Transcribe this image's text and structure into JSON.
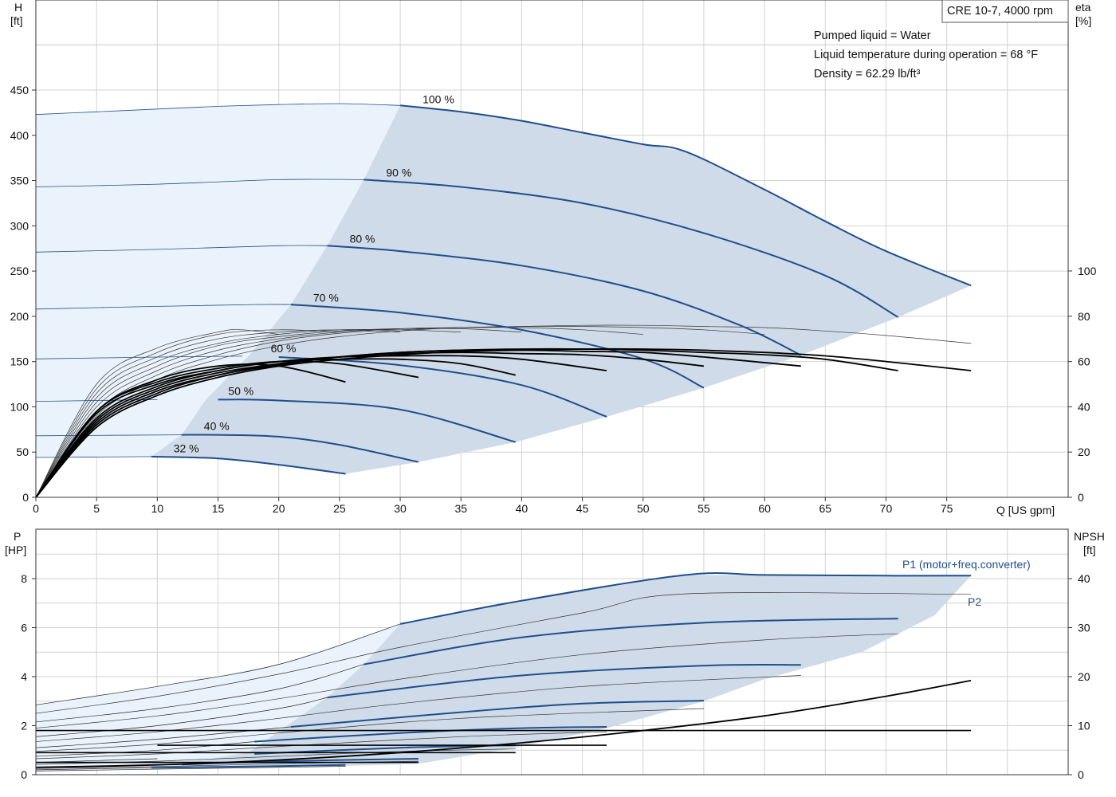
{
  "chart_data": [
    {
      "type": "line",
      "title": "CRE 10-7, 4000 rpm",
      "info_lines": [
        "Pumped liquid = Water",
        "Liquid temperature during operation = 68 °F",
        "Density = 62.29 lb/ft³"
      ],
      "xlabel": "Q [US gpm]",
      "ylabel_main": "H",
      "ylabel_unit": "[ft]",
      "ylabel2_main": "eta",
      "ylabel2_unit": "[%]",
      "xlim": [
        0,
        85
      ],
      "ylim": [
        0,
        450
      ],
      "ylim_right": [
        0,
        100
      ],
      "x_ticks": [
        "0",
        "5",
        "10",
        "15",
        "20",
        "25",
        "30",
        "35",
        "40",
        "45",
        "50",
        "55",
        "60",
        "65",
        "70",
        "75"
      ],
      "y_ticks": [
        "0",
        "50",
        "100",
        "150",
        "200",
        "250",
        "300",
        "350",
        "400",
        "450"
      ],
      "y2_ticks": [
        "0",
        "20",
        "40",
        "60",
        "80",
        "100"
      ],
      "grid": true,
      "colors": {
        "curve": "#1f4e8c",
        "region": "#cfdbe8",
        "region_light": "#eaf3fb",
        "eta": "#000000",
        "thin": "#333333"
      },
      "head_series": [
        {
          "name": "100 %",
          "shut": 423,
          "x": [
            0,
            5,
            10,
            15,
            20,
            25,
            30,
            35,
            40,
            45,
            50,
            53.5,
            60,
            65,
            70,
            77
          ],
          "y": [
            423,
            426,
            429,
            432,
            434,
            435,
            433,
            426,
            416,
            403,
            390,
            382,
            340,
            305,
            272,
            234
          ]
        },
        {
          "name": "90 %",
          "shut": 343,
          "x": [
            0,
            10,
            20,
            27,
            35,
            45,
            55,
            65,
            71
          ],
          "y": [
            343,
            346,
            351,
            351,
            343,
            325,
            292,
            245,
            199
          ]
        },
        {
          "name": "80 %",
          "shut": 271,
          "x": [
            0,
            10,
            20,
            24,
            30,
            40,
            50,
            58,
            63
          ],
          "y": [
            271,
            274,
            278,
            278,
            272,
            256,
            228,
            190,
            157
          ]
        },
        {
          "name": "70 %",
          "shut": 208,
          "x": [
            0,
            10,
            18,
            21,
            30,
            40,
            50,
            55
          ],
          "y": [
            208,
            211,
            213,
            213,
            204,
            185,
            153,
            121
          ]
        },
        {
          "name": "60 %",
          "shut": 153,
          "x": [
            0,
            10,
            17,
            20,
            30,
            40,
            47
          ],
          "y": [
            153,
            155,
            156,
            155,
            146,
            124,
            89
          ]
        },
        {
          "name": "50 %",
          "shut": 106,
          "x": [
            0,
            10,
            15,
            20,
            30,
            39.5
          ],
          "y": [
            106,
            108,
            108,
            107,
            97,
            61
          ]
        },
        {
          "name": "40 %",
          "shut": 68,
          "x": [
            0,
            12,
            15,
            20,
            25,
            31.5
          ],
          "y": [
            68,
            69,
            69,
            67,
            58,
            39
          ]
        },
        {
          "name": "32 %",
          "shut": 44,
          "x": [
            0,
            9.5,
            15,
            20,
            25.5
          ],
          "y": [
            44,
            45,
            43,
            36,
            26
          ]
        }
      ],
      "eta_series": [
        {
          "x": [
            0,
            5,
            10,
            15,
            20,
            25.5
          ],
          "y": [
            0,
            38,
            52,
            58,
            58,
            51
          ]
        },
        {
          "x": [
            0,
            5,
            10,
            15,
            20,
            25,
            31.5
          ],
          "y": [
            0,
            38,
            51,
            57,
            60,
            59,
            53
          ]
        },
        {
          "x": [
            0,
            5,
            10,
            15,
            20,
            25,
            30,
            35,
            39.5
          ],
          "y": [
            0,
            37,
            50,
            56,
            60,
            61,
            61,
            59,
            54
          ]
        },
        {
          "x": [
            0,
            5,
            10,
            15,
            20,
            25,
            30,
            35,
            40,
            47
          ],
          "y": [
            0,
            35,
            49,
            56,
            60,
            62,
            62.5,
            62.5,
            61,
            56
          ]
        },
        {
          "x": [
            0,
            5,
            10,
            15,
            20,
            25,
            30,
            35,
            40,
            45,
            50,
            55
          ],
          "y": [
            0,
            34,
            48,
            55,
            59,
            62,
            63.5,
            64,
            63.5,
            63,
            61,
            58
          ]
        },
        {
          "x": [
            0,
            5,
            10,
            15,
            20,
            25,
            30,
            35,
            40,
            45,
            50,
            55,
            63
          ],
          "y": [
            0,
            33,
            47,
            54,
            59,
            62,
            64,
            65,
            65,
            64.5,
            64,
            62,
            58
          ]
        },
        {
          "x": [
            0,
            5,
            10,
            15,
            20,
            25,
            30,
            35,
            40,
            45,
            50,
            55,
            60,
            65,
            71
          ],
          "y": [
            0,
            32,
            46,
            54,
            58.5,
            62,
            64,
            65,
            65.5,
            65.5,
            65,
            64,
            63,
            61,
            56
          ]
        },
        {
          "x": [
            0,
            5,
            10,
            15,
            20,
            25,
            30,
            35,
            40,
            45,
            50,
            55,
            60,
            65,
            70,
            77
          ],
          "y": [
            0,
            31,
            45,
            53,
            58,
            61,
            63,
            64.5,
            65,
            65.5,
            65.5,
            65,
            64,
            62.5,
            60,
            56
          ]
        }
      ],
      "eta_thin_series": [
        {
          "x": [
            0,
            5,
            10,
            15,
            17,
            20
          ],
          "y": [
            0,
            50,
            66,
            73,
            74,
            72
          ]
        },
        {
          "x": [
            0,
            5,
            10,
            15,
            20,
            25
          ],
          "y": [
            0,
            48,
            64,
            72,
            74,
            73
          ]
        },
        {
          "x": [
            0,
            5,
            10,
            15,
            20,
            25,
            30
          ],
          "y": [
            0,
            46,
            62,
            70,
            73,
            74,
            73
          ]
        },
        {
          "x": [
            0,
            5,
            10,
            15,
            20,
            25,
            30,
            35
          ],
          "y": [
            0,
            44,
            60,
            68,
            72,
            74,
            74,
            73
          ]
        },
        {
          "x": [
            0,
            5,
            10,
            15,
            20,
            25,
            30,
            35,
            40
          ],
          "y": [
            0,
            42,
            58,
            67,
            71,
            73.5,
            74.5,
            74.5,
            73
          ]
        },
        {
          "x": [
            0,
            5,
            10,
            15,
            20,
            25,
            30,
            35,
            40,
            45,
            50
          ],
          "y": [
            0,
            40,
            56,
            65,
            70,
            73,
            74.5,
            75,
            75,
            74,
            72
          ]
        },
        {
          "x": [
            0,
            5,
            10,
            15,
            20,
            25,
            30,
            35,
            40,
            45,
            50,
            55,
            60
          ],
          "y": [
            0,
            38,
            54,
            63,
            69,
            72.5,
            74,
            75,
            75.5,
            75.5,
            75,
            74,
            72
          ]
        },
        {
          "x": [
            0,
            5,
            10,
            15,
            20,
            25,
            30,
            35,
            40,
            45,
            50,
            55,
            60,
            65,
            70,
            77
          ],
          "y": [
            0,
            36,
            52,
            61,
            67,
            71,
            73.5,
            75,
            75.5,
            76,
            76,
            75.5,
            75,
            73.5,
            71.5,
            68
          ]
        }
      ]
    },
    {
      "type": "line",
      "ylabel_main": "P",
      "ylabel_unit": "[HP]",
      "ylabel2_main": "NPSH",
      "ylabel2_unit": "[ft]",
      "xlim": [
        0,
        85
      ],
      "ylim": [
        0,
        8
      ],
      "ylim_right": [
        0,
        40
      ],
      "y_ticks": [
        "0",
        "2",
        "4",
        "6",
        "8"
      ],
      "y2_ticks": [
        "0",
        "10",
        "20",
        "30",
        "40"
      ],
      "grid": true,
      "p1_label": "P1 (motor+freq.converter)",
      "p2_label": "P2",
      "p1_series": [
        {
          "name": "100 %",
          "x": [
            0,
            10,
            20,
            30,
            40,
            53.5,
            60,
            70,
            77
          ],
          "y": [
            2.85,
            3.6,
            4.5,
            6.15,
            7.1,
            8.15,
            8.15,
            8.12,
            8.12
          ]
        },
        {
          "name": "90 %",
          "x": [
            0,
            10,
            20,
            27,
            40,
            55,
            71
          ],
          "y": [
            2.15,
            2.7,
            3.5,
            4.5,
            5.6,
            6.2,
            6.37
          ]
        },
        {
          "name": "80 %",
          "x": [
            0,
            10,
            20,
            24,
            40,
            55,
            63
          ],
          "y": [
            1.55,
            2.0,
            2.7,
            3.15,
            4.05,
            4.45,
            4.48
          ]
        },
        {
          "name": "70 %",
          "x": [
            0,
            10,
            21,
            35,
            45,
            55
          ],
          "y": [
            1.1,
            1.45,
            1.95,
            2.55,
            2.9,
            3.02
          ]
        },
        {
          "name": "60 %",
          "x": [
            0,
            10,
            18,
            30,
            40,
            47
          ],
          "y": [
            0.75,
            1.0,
            1.35,
            1.7,
            1.9,
            1.95
          ]
        },
        {
          "name": "50 %",
          "x": [
            0,
            10,
            18,
            30,
            39.5
          ],
          "y": [
            0.5,
            0.65,
            0.85,
            1.1,
            1.2
          ]
        },
        {
          "name": "40 %",
          "x": [
            0,
            12,
            20,
            31.5
          ],
          "y": [
            0.3,
            0.42,
            0.55,
            0.65
          ]
        },
        {
          "name": "32 %",
          "x": [
            0,
            9.5,
            20,
            25.5
          ],
          "y": [
            0.2,
            0.28,
            0.35,
            0.4
          ]
        }
      ],
      "p2_series": [
        {
          "name": "100 %",
          "x": [
            0,
            10,
            20,
            30,
            45,
            53.5,
            77
          ],
          "y": [
            2.5,
            3.2,
            4.1,
            5.2,
            6.6,
            7.38,
            7.36
          ]
        },
        {
          "name": "90 %",
          "x": [
            0,
            10,
            20,
            30,
            45,
            60,
            71
          ],
          "y": [
            1.9,
            2.4,
            3.1,
            3.9,
            4.9,
            5.5,
            5.75
          ]
        },
        {
          "name": "80 %",
          "x": [
            0,
            10,
            20,
            30,
            45,
            63
          ],
          "y": [
            1.35,
            1.75,
            2.3,
            2.9,
            3.6,
            4.05
          ]
        },
        {
          "name": "70 %",
          "x": [
            0,
            10,
            20,
            35,
            55
          ],
          "y": [
            0.95,
            1.25,
            1.7,
            2.3,
            2.7
          ]
        },
        {
          "name": "60 %",
          "x": [
            0,
            10,
            20,
            35,
            47
          ],
          "y": [
            0.65,
            0.85,
            1.15,
            1.55,
            1.75
          ]
        },
        {
          "name": "50 %",
          "x": [
            0,
            10,
            20,
            30,
            39.5
          ],
          "y": [
            0.42,
            0.55,
            0.75,
            0.95,
            1.05
          ]
        },
        {
          "name": "40 %",
          "x": [
            0,
            12,
            20,
            31.5
          ],
          "y": [
            0.25,
            0.35,
            0.45,
            0.55
          ]
        },
        {
          "name": "32 %",
          "x": [
            0,
            9.5,
            20,
            25.5
          ],
          "y": [
            0.15,
            0.22,
            0.3,
            0.34
          ]
        }
      ],
      "npsh_series": [
        {
          "x": [
            0,
            10,
            20,
            30,
            40,
            50,
            60,
            70,
            77
          ],
          "y": [
            1.5,
            2,
            3,
            4.5,
            6.5,
            9,
            12,
            16,
            19.2
          ]
        }
      ],
      "npsh_horizontal": [
        {
          "x": [
            0,
            77
          ],
          "y": [
            9,
            9
          ]
        },
        {
          "x": [
            10,
            47
          ],
          "y": [
            6,
            6
          ]
        },
        {
          "x": [
            0,
            39.5
          ],
          "y": [
            4.5,
            4.5
          ]
        },
        {
          "x": [
            0,
            31.5
          ],
          "y": [
            2.5,
            2.5
          ]
        }
      ]
    }
  ]
}
